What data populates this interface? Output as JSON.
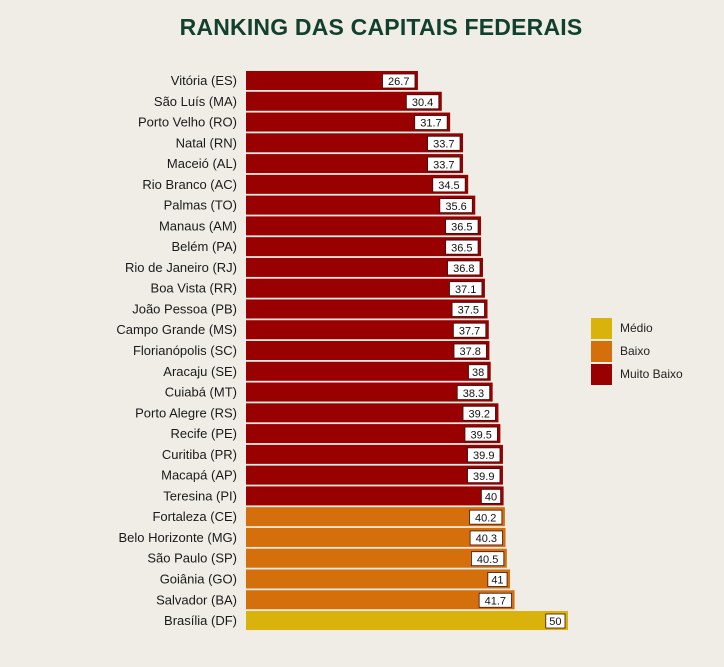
{
  "chart_data": {
    "type": "bar",
    "orientation": "horizontal",
    "title": "RANKING DAS CAPITAIS FEDERAIS",
    "xlim": [
      0,
      50
    ],
    "grid": false,
    "legend_position": "right",
    "legend": [
      {
        "label": "Médio",
        "color": "#d9b20c"
      },
      {
        "label": "Baixo",
        "color": "#d46f0b"
      },
      {
        "label": "Muito Baixo",
        "color": "#990000"
      }
    ],
    "categories": [
      "Vitória (ES)",
      "São Luís (MA)",
      "Porto Velho (RO)",
      "Natal (RN)",
      "Maceió (AL)",
      "Rio Branco (AC)",
      "Palmas (TO)",
      "Manaus (AM)",
      "Belém (PA)",
      "Rio de Janeiro (RJ)",
      "Boa Vista (RR)",
      "João Pessoa (PB)",
      "Campo Grande (MS)",
      "Florianópolis (SC)",
      "Aracaju (SE)",
      "Cuiabá (MT)",
      "Porto Alegre (RS)",
      "Recife (PE)",
      "Curitiba (PR)",
      "Macapá (AP)",
      "Teresina (PI)",
      "Fortaleza (CE)",
      "Belo Horizonte (MG)",
      "São Paulo (SP)",
      "Goiânia (GO)",
      "Salvador (BA)",
      "Brasília (DF)"
    ],
    "values": [
      26.7,
      30.4,
      31.7,
      33.7,
      33.7,
      34.5,
      35.6,
      36.5,
      36.5,
      36.8,
      37.1,
      37.5,
      37.7,
      37.8,
      38,
      38.3,
      39.2,
      39.5,
      39.9,
      39.9,
      40,
      40.2,
      40.3,
      40.5,
      41,
      41.7,
      50
    ],
    "value_labels": [
      "26.7",
      "30.4",
      "31.7",
      "33.7",
      "33.7",
      "34.5",
      "35.6",
      "36.5",
      "36.5",
      "36.8",
      "37.1",
      "37.5",
      "37.7",
      "37.8",
      "38",
      "38.3",
      "39.2",
      "39.5",
      "39.9",
      "39.9",
      "40",
      "40.2",
      "40.3",
      "40.5",
      "41",
      "41.7",
      "50"
    ],
    "classes": [
      "Muito Baixo",
      "Muito Baixo",
      "Muito Baixo",
      "Muito Baixo",
      "Muito Baixo",
      "Muito Baixo",
      "Muito Baixo",
      "Muito Baixo",
      "Muito Baixo",
      "Muito Baixo",
      "Muito Baixo",
      "Muito Baixo",
      "Muito Baixo",
      "Muito Baixo",
      "Muito Baixo",
      "Muito Baixo",
      "Muito Baixo",
      "Muito Baixo",
      "Muito Baixo",
      "Muito Baixo",
      "Muito Baixo",
      "Baixo",
      "Baixo",
      "Baixo",
      "Baixo",
      "Baixo",
      "Médio"
    ]
  }
}
